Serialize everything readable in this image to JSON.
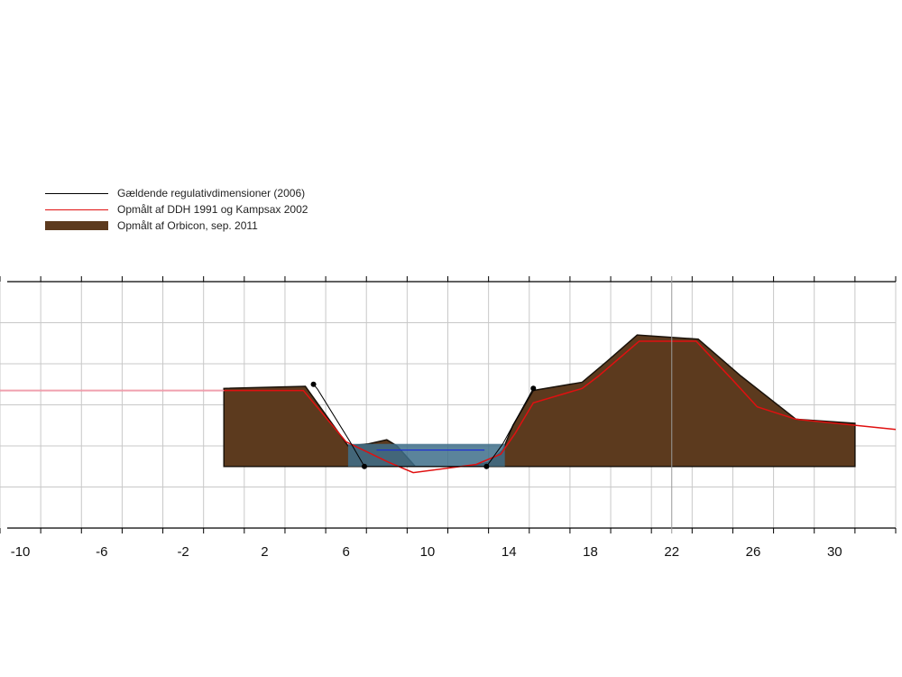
{
  "chart_data": {
    "type": "area",
    "title": "",
    "xlabel": "",
    "ylabel": "",
    "xlim": [
      -11,
      33
    ],
    "ylim": [
      -6,
      0
    ],
    "x_ticks": [
      -10,
      -6,
      -2,
      2,
      6,
      10,
      14,
      18,
      22,
      26,
      30
    ],
    "grid": true,
    "legend_position": "top-left",
    "legend": [
      {
        "label": "Gældende regulativdimensioner (2006)",
        "color": "#000000",
        "kind": "line"
      },
      {
        "label": "Opmålt af DDH 1991 og Kampsax 2002",
        "color": "#e01010",
        "kind": "line"
      },
      {
        "label": "Opmålt af Orbicon, sep. 2011",
        "color": "#5c3a1e",
        "kind": "fill"
      }
    ],
    "series": [
      {
        "name": "Opmålt af Orbicon, sep. 2011",
        "kind": "fill",
        "color": "#5c3a1e",
        "base": -4.5,
        "x": [
          0,
          4,
          6.1,
          7.1,
          8,
          8.5,
          9.4,
          12,
          13,
          13.7,
          14.2,
          15.2,
          17.6,
          18.8,
          20.3,
          23.3,
          25.4,
          28.1,
          31
        ],
        "y": [
          -2.6,
          -2.55,
          -4.0,
          -3.95,
          -3.85,
          -4.0,
          -4.5,
          -4.5,
          -4.4,
          -4.1,
          -3.5,
          -2.65,
          -2.45,
          -1.95,
          -1.3,
          -1.4,
          -2.3,
          -3.35,
          -3.45
        ]
      },
      {
        "name": "Opmålt af DDH 1991 og Kampsax 2002",
        "kind": "line",
        "color": "#e01010",
        "x": [
          -11,
          3.9,
          6,
          8.1,
          9.3,
          12.4,
          13.6,
          14.3,
          15.2,
          17.6,
          18.4,
          20.4,
          23.2,
          25,
          26.2,
          28.1,
          33
        ],
        "y": [
          -2.65,
          -2.65,
          -3.9,
          -4.4,
          -4.65,
          -4.45,
          -4.2,
          -3.7,
          -2.95,
          -2.6,
          -2.3,
          -1.45,
          -1.45,
          -2.4,
          -3.05,
          -3.35,
          -3.6
        ]
      },
      {
        "name": "Gældende regulativdimensioner (2006)",
        "kind": "line",
        "color": "#000000",
        "x": [
          4.4,
          4.6,
          6.2,
          6.9,
          12.9,
          13.7,
          15.2
        ],
        "y": [
          -2.5,
          -2.62,
          -3.9,
          -4.5,
          -4.5,
          -3.95,
          -2.6
        ]
      },
      {
        "name": "",
        "kind": "water",
        "color": "#3e6e8a",
        "x": [
          6.1,
          13.8
        ],
        "y": [
          -3.95,
          -4.5
        ],
        "water_level": -3.95,
        "inner_line": {
          "x": [
            7.5,
            12.8
          ],
          "y": -4.1,
          "color": "#1a2ad8"
        }
      },
      {
        "name": "",
        "kind": "line",
        "color": "#f0a0b0",
        "x": [
          -11,
          0
        ],
        "y": [
          -2.65,
          -2.65
        ]
      }
    ],
    "markers": [
      {
        "x": 4.4,
        "y": -2.5
      },
      {
        "x": 6.9,
        "y": -4.5
      },
      {
        "x": 12.9,
        "y": -4.5
      },
      {
        "x": 15.2,
        "y": -2.6
      }
    ]
  }
}
